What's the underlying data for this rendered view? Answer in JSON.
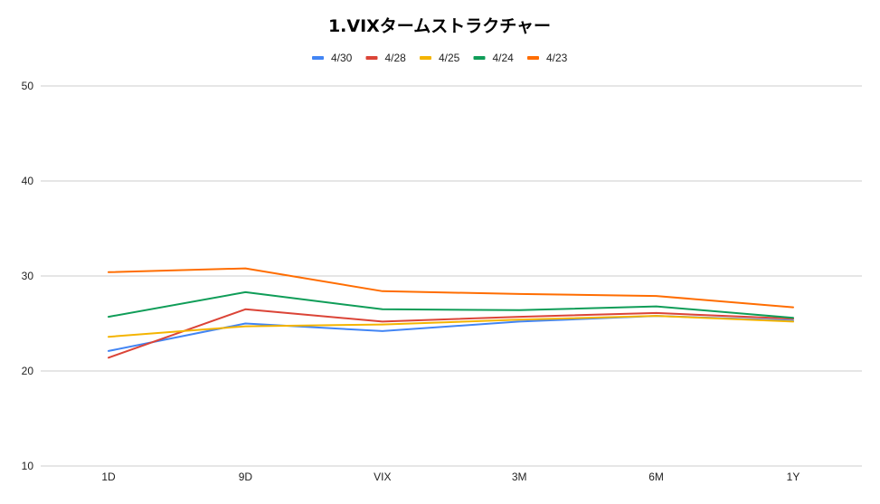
{
  "chart_data": {
    "type": "line",
    "title": "1.VIXタームストラクチャー",
    "xlabel": "",
    "ylabel": "",
    "categories": [
      "1D",
      "9D",
      "VIX",
      "3M",
      "6M",
      "1Y"
    ],
    "ylim": [
      10,
      50
    ],
    "yticks": [
      10,
      20,
      30,
      40,
      50
    ],
    "grid": true,
    "legend_position": "top",
    "series": [
      {
        "name": "4/30",
        "color": "#4285F4",
        "values": [
          22.1,
          25.0,
          24.2,
          25.2,
          25.8,
          25.3
        ]
      },
      {
        "name": "4/28",
        "color": "#DB4437",
        "values": [
          21.4,
          26.5,
          25.2,
          25.7,
          26.1,
          25.5
        ]
      },
      {
        "name": "4/25",
        "color": "#F4B400",
        "values": [
          23.6,
          24.7,
          24.9,
          25.4,
          25.8,
          25.2
        ]
      },
      {
        "name": "4/24",
        "color": "#0F9D58",
        "values": [
          25.7,
          28.3,
          26.5,
          26.4,
          26.8,
          25.6
        ]
      },
      {
        "name": "4/23",
        "color": "#FF6D01",
        "values": [
          30.4,
          30.8,
          28.4,
          28.1,
          27.9,
          26.7
        ]
      }
    ]
  }
}
